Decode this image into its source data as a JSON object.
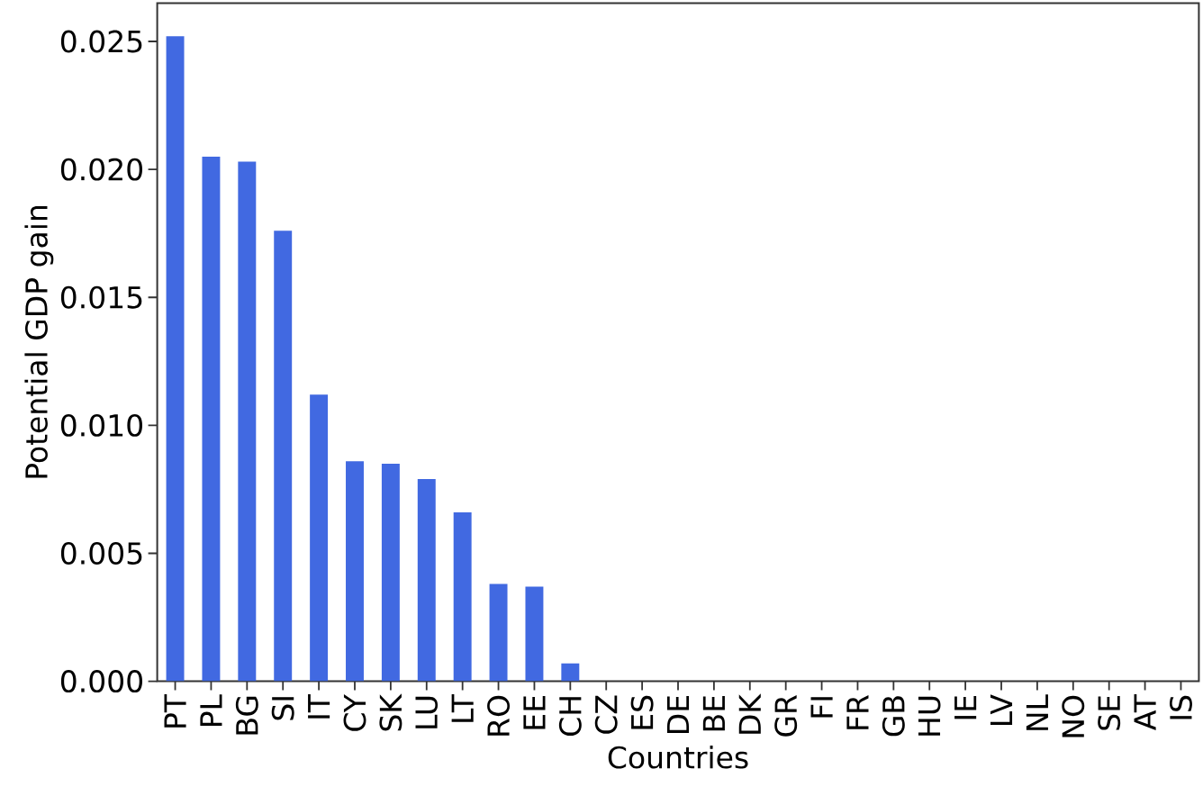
{
  "chart_data": {
    "type": "bar",
    "xlabel": "Countries",
    "ylabel": "Potential GDP gain",
    "categories": [
      "PT",
      "PL",
      "BG",
      "SI",
      "IT",
      "CY",
      "SK",
      "LU",
      "LT",
      "RO",
      "EE",
      "CH",
      "CZ",
      "ES",
      "DE",
      "BE",
      "DK",
      "GR",
      "FI",
      "FR",
      "GB",
      "HU",
      "IE",
      "LV",
      "NL",
      "NO",
      "SE",
      "AT",
      "IS"
    ],
    "values": [
      0.0252,
      0.0205,
      0.0203,
      0.0176,
      0.0112,
      0.0086,
      0.0085,
      0.0079,
      0.0066,
      0.0038,
      0.0037,
      0.0007,
      0,
      0,
      0,
      0,
      0,
      0,
      0,
      0,
      0,
      0,
      0,
      0,
      0,
      0,
      0,
      0,
      0
    ],
    "color": "#4169e1",
    "ylim": [
      0,
      0.0265
    ],
    "yticks": [
      {
        "value": 0,
        "label": "0.000"
      },
      0.005,
      {
        "value": 0.01,
        "label": "0.010"
      },
      0.015,
      {
        "value": 0.02,
        "label": "0.020"
      },
      0.025
    ]
  }
}
